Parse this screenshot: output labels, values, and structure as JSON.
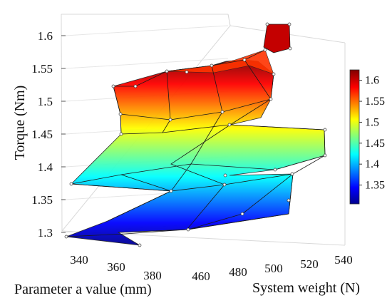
{
  "chart_data": {
    "type": "surface3d",
    "title": "",
    "zlabel": "Torque (Nm)",
    "xlabel": "Parameter a value (mm)",
    "ylabel": "System weight (N)",
    "x_axis": {
      "ticks": [
        340,
        360,
        380
      ],
      "range": [
        330,
        390
      ]
    },
    "y_axis": {
      "ticks": [
        460,
        480,
        500,
        520,
        540
      ],
      "range": [
        450,
        545
      ]
    },
    "z_axis": {
      "ticks": [
        1.3,
        1.35,
        1.4,
        1.45,
        1.5,
        1.55,
        1.6
      ],
      "range": [
        1.3,
        1.62
      ]
    },
    "colorbar": {
      "ticks": [
        1.35,
        1.4,
        1.45,
        1.5,
        1.55,
        1.6
      ],
      "range": [
        1.305,
        1.625
      ],
      "colormap": "jet"
    },
    "grid": true,
    "surface_rows": [
      {
        "x": 343,
        "y": 530,
        "z": 1.301
      },
      {
        "x": 345,
        "y": 460,
        "z": 1.34
      },
      {
        "x": 338,
        "y": 520,
        "z": 1.377
      },
      {
        "x": 345,
        "y": 470,
        "z": 1.46
      },
      {
        "x": 343,
        "y": 500,
        "z": 1.522
      },
      {
        "x": 350,
        "y": 505,
        "z": 1.552
      },
      {
        "x": 358,
        "y": 510,
        "z": 1.617
      }
    ],
    "surface_cols": [
      {
        "x": 362,
        "y": 460,
        "z": 1.298
      },
      {
        "x": 372,
        "y": 470,
        "z": 1.334
      },
      {
        "x": 378,
        "y": 480,
        "z": 1.365
      },
      {
        "x": 376,
        "y": 490,
        "z": 1.418
      },
      {
        "x": 372,
        "y": 500,
        "z": 1.52
      },
      {
        "x": 362,
        "y": 510,
        "z": 1.57
      },
      {
        "x": 358,
        "y": 520,
        "z": 1.605
      }
    ]
  }
}
